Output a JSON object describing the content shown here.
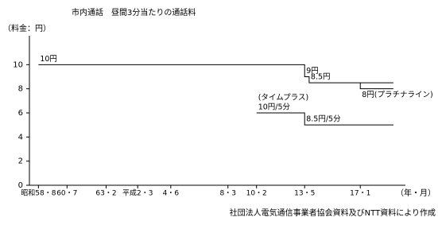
{
  "chart_data": {
    "type": "step",
    "title": "市内通話　昼間3分当たりの通話料",
    "y_label": "（料金：円）",
    "x_label": "（年・月）",
    "source": "社団法人電気通信事業者協会資料及びNTT資料により作成",
    "xlim": [
      1983,
      2008
    ],
    "xticks": [
      {
        "value": 1983.6,
        "label": "昭和58・8"
      },
      {
        "value": 1985.5,
        "label": "60・7"
      },
      {
        "value": 1988.1,
        "label": "63・2"
      },
      {
        "value": 1990.2,
        "label": "平成2・3"
      },
      {
        "value": 1992.4,
        "label": "4・6"
      },
      {
        "value": 1996.2,
        "label": "8・3"
      },
      {
        "value": 1998.1,
        "label": "10・2"
      },
      {
        "value": 2001.3,
        "label": "13・5"
      },
      {
        "value": 2005.0,
        "label": "17・1"
      }
    ],
    "ylim": [
      0,
      12
    ],
    "yticks": [
      0,
      2,
      4,
      6,
      8,
      10
    ],
    "color": "#000000",
    "series": [
      {
        "x": [
          1983.6,
          2001.3,
          2001.3,
          2001.6,
          2001.6,
          2007.2
        ],
        "values": [
          10,
          10,
          9,
          9,
          8.5,
          8.5
        ],
        "point_labels": [
          [
            "10円"
          ],
          null,
          [
            "9円"
          ],
          null,
          [
            "8.5円"
          ],
          null
        ]
      },
      {
        "x": [
          2005.0,
          2005.0,
          2007.2
        ],
        "values": [
          8.5,
          8,
          8
        ],
        "label_side": "below",
        "point_labels": [
          null,
          null,
          [
            "8円(プラチナライン)"
          ]
        ]
      },
      {
        "x": [
          1998.1,
          2001.3,
          2001.3,
          2007.2
        ],
        "values": [
          6,
          6,
          5,
          5
        ],
        "point_labels": [
          [
            "(タイムプラス)",
            "10円/5分"
          ],
          null,
          [
            "8.5円/5分"
          ],
          null
        ]
      }
    ]
  }
}
